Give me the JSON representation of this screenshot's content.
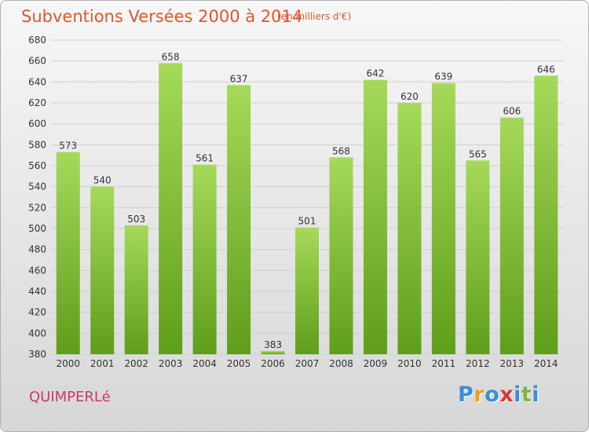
{
  "title": "Subventions Versées 2000 à 2014",
  "subtitle": "(en milliers d'€)",
  "commune": "QUIMPERLé",
  "logo": {
    "letters": [
      "P",
      "r",
      "o",
      "x",
      "i",
      "t",
      "i"
    ],
    "colors": [
      "#3a8fd6",
      "#e9a21e",
      "#3a8fd6",
      "#d63a3a",
      "#3a8fd6",
      "#7ab83a",
      "#3a8fd6"
    ]
  },
  "colors": {
    "bar_light": "#a6d95a",
    "bar_dark": "#5f9e1a",
    "grid": "#cfcfcf"
  },
  "chart_data": {
    "type": "bar",
    "categories": [
      "2000",
      "2001",
      "2002",
      "2003",
      "2004",
      "2005",
      "2006",
      "2007",
      "2008",
      "2009",
      "2010",
      "2011",
      "2012",
      "2013",
      "2014"
    ],
    "values": [
      573,
      540,
      503,
      658,
      561,
      637,
      383,
      501,
      568,
      642,
      620,
      639,
      565,
      606,
      646
    ],
    "ylim": [
      380,
      680
    ],
    "yticks": [
      380,
      400,
      420,
      440,
      460,
      480,
      500,
      520,
      540,
      560,
      580,
      600,
      620,
      640,
      660,
      680
    ],
    "grid": true,
    "data_labels": true
  }
}
